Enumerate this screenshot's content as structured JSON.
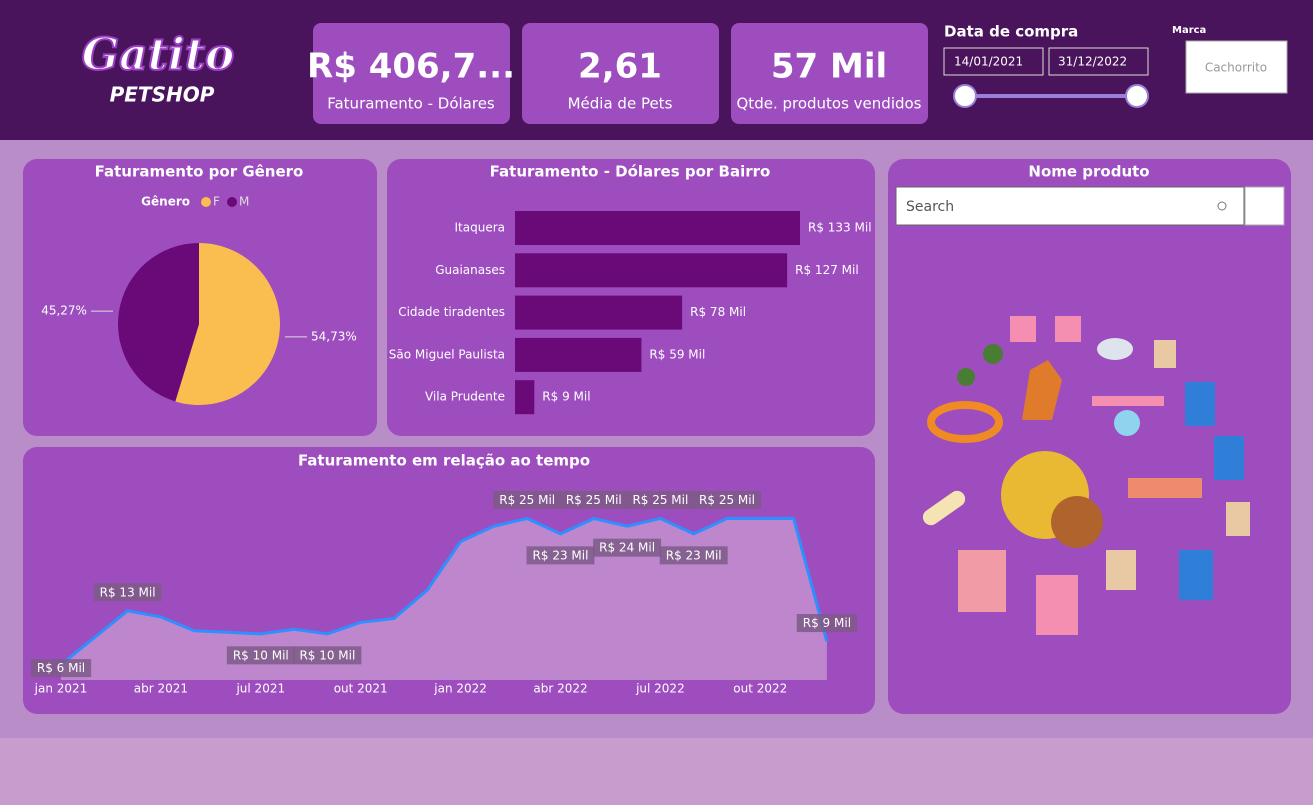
{
  "header": {
    "logo": {
      "name": "Gatito",
      "sub": "PETSHOP"
    },
    "kpis": [
      {
        "value": "R$ 406,7...",
        "label": "Faturamento - Dólares"
      },
      {
        "value": "2,61",
        "label": "Média de Pets"
      },
      {
        "value": "57 Mil",
        "label": "Qtde. produtos vendidos"
      }
    ],
    "date_filter": {
      "title": "Data de compra",
      "start": "14/01/2021",
      "end": "31/12/2022"
    },
    "brand_filter": {
      "title": "Marca",
      "value": "Cachorrito"
    }
  },
  "product_panel": {
    "title": "Nome produto",
    "search_placeholder": "Search"
  },
  "chart_data": [
    {
      "type": "pie",
      "title": "Faturamento por Gênero",
      "legend_title": "Gênero",
      "categories": [
        "F",
        "M"
      ],
      "values": [
        54.73,
        45.27
      ],
      "value_labels": [
        "54,73%",
        "45,27%"
      ],
      "colors": [
        "#f9be4f",
        "#6a0a78"
      ]
    },
    {
      "type": "hbar",
      "title": "Faturamento - Dólares por Bairro",
      "categories": [
        "Itaquera",
        "Guaianases",
        "Cidade tiradentes",
        "São Miguel Paulista",
        "Vila Prudente"
      ],
      "values": [
        133,
        127,
        78,
        59,
        9
      ],
      "value_labels": [
        "R$ 133 Mil",
        "R$ 127 Mil",
        "R$ 78 Mil",
        "R$ 59 Mil",
        "R$ 9 Mil"
      ],
      "color": "#6a0a78",
      "xlim": [
        0,
        140
      ]
    },
    {
      "type": "area",
      "title": "Faturamento em relação ao tempo",
      "categories": [
        "jan 2021",
        null,
        null,
        "abr 2021",
        null,
        null,
        "jul 2021",
        null,
        null,
        "out 2021",
        null,
        null,
        "jan 2022",
        null,
        null,
        "abr 2022",
        null,
        null,
        "jul 2022",
        null,
        null,
        "out 2022",
        null,
        null
      ],
      "values": [
        6,
        9.5,
        13,
        12.2,
        10.4,
        10.2,
        10,
        10.6,
        10,
        11.5,
        12,
        15.7,
        22,
        24,
        25,
        23,
        25,
        24,
        25,
        23,
        25,
        25,
        25,
        9
      ],
      "value_labels": [
        "R$ 6 Mil",
        null,
        "R$ 13 Mil",
        null,
        null,
        null,
        "R$ 10 Mil",
        null,
        "R$ 10 Mil",
        null,
        null,
        null,
        null,
        null,
        "R$ 25 Mil",
        "R$ 23 Mil",
        "R$ 25 Mil",
        "R$ 24 Mil",
        "R$ 25 Mil",
        "R$ 23 Mil",
        "R$ 25 Mil",
        null,
        null,
        "R$ 9 Mil"
      ],
      "color": "#2e8fff",
      "ylim": [
        4,
        30
      ]
    }
  ]
}
